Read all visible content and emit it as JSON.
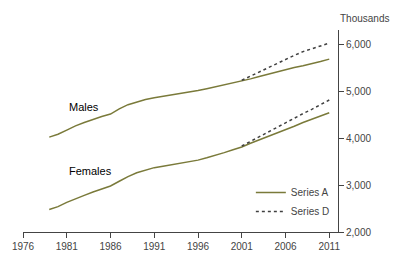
{
  "chart_data": {
    "type": "line",
    "ylabel": "Thousands",
    "xlim": [
      1976,
      2012
    ],
    "xticks": [
      1976,
      1981,
      1986,
      1991,
      1996,
      2001,
      2006,
      2011
    ],
    "ylim": [
      2000,
      6300
    ],
    "yticks": [
      {
        "value": 2000,
        "label": "2,000"
      },
      {
        "value": 3000,
        "label": "3,000"
      },
      {
        "value": 4000,
        "label": "4,000"
      },
      {
        "value": 5000,
        "label": "5,000"
      },
      {
        "value": 6000,
        "label": "6,000"
      }
    ],
    "grid": false,
    "legend": "lower right",
    "series": [
      {
        "name": "Series A",
        "color": "#7a7a3a",
        "line_style": "solid",
        "x": [
          1979,
          1980,
          1981,
          1982,
          1983,
          1984,
          1985,
          1986,
          1987,
          1988,
          1989,
          1990,
          1991,
          1992,
          1993,
          1994,
          1995,
          1996,
          1997,
          1998,
          1999,
          2000,
          2001,
          2002,
          2003,
          2004,
          2005,
          2006,
          2007,
          2008,
          2009,
          2010,
          2011
        ],
        "values": [
          4020,
          4080,
          4170,
          4260,
          4330,
          4400,
          4460,
          4510,
          4620,
          4710,
          4770,
          4820,
          4860,
          4890,
          4910,
          4940,
          4970,
          5010,
          5050,
          5090,
          5130,
          5170,
          5210,
          5260,
          5310,
          5360,
          5410,
          5460,
          5500,
          5540,
          5580,
          5630,
          5680
        ]
      },
      {
        "name": "Series D",
        "color": "#404040",
        "line_style": "dotted",
        "x": [
          2001,
          2002,
          2003,
          2004,
          2005,
          2006,
          2007,
          2008,
          2009,
          2010,
          2011
        ],
        "values": [
          5230,
          5320,
          5410,
          5500,
          5590,
          5680,
          5760,
          5840,
          5900,
          5960,
          6020
        ]
      },
      {
        "color": "#7a7a3a",
        "line_style": "solid",
        "x": [
          1979,
          1980,
          1981,
          1982,
          1983,
          1984,
          1985,
          1986,
          1987,
          1988,
          1989,
          1990,
          1991,
          1992,
          1993,
          1994,
          1995,
          1996,
          1997,
          1998,
          1999,
          2000,
          2001,
          2002,
          2003,
          2004,
          2005,
          2006,
          2007,
          2008,
          2009,
          2010,
          2011
        ],
        "values": [
          2480,
          2540,
          2630,
          2710,
          2780,
          2850,
          2920,
          2980,
          3080,
          3180,
          3260,
          3320,
          3370,
          3400,
          3430,
          3460,
          3490,
          3530,
          3580,
          3630,
          3690,
          3750,
          3810,
          3890,
          3960,
          4030,
          4100,
          4170,
          4250,
          4330,
          4400,
          4470,
          4540
        ]
      },
      {
        "color": "#404040",
        "line_style": "dotted",
        "x": [
          2001,
          2002,
          2003,
          2004,
          2005,
          2006,
          2007,
          2008,
          2009,
          2010,
          2011
        ],
        "values": [
          3830,
          3930,
          4020,
          4120,
          4220,
          4320,
          4420,
          4520,
          4610,
          4710,
          4810
        ]
      }
    ],
    "annotations": [
      {
        "text": "Males",
        "x": 1981,
        "y": 4490
      },
      {
        "text": "Females",
        "x": 1981,
        "y": 3120
      }
    ]
  }
}
